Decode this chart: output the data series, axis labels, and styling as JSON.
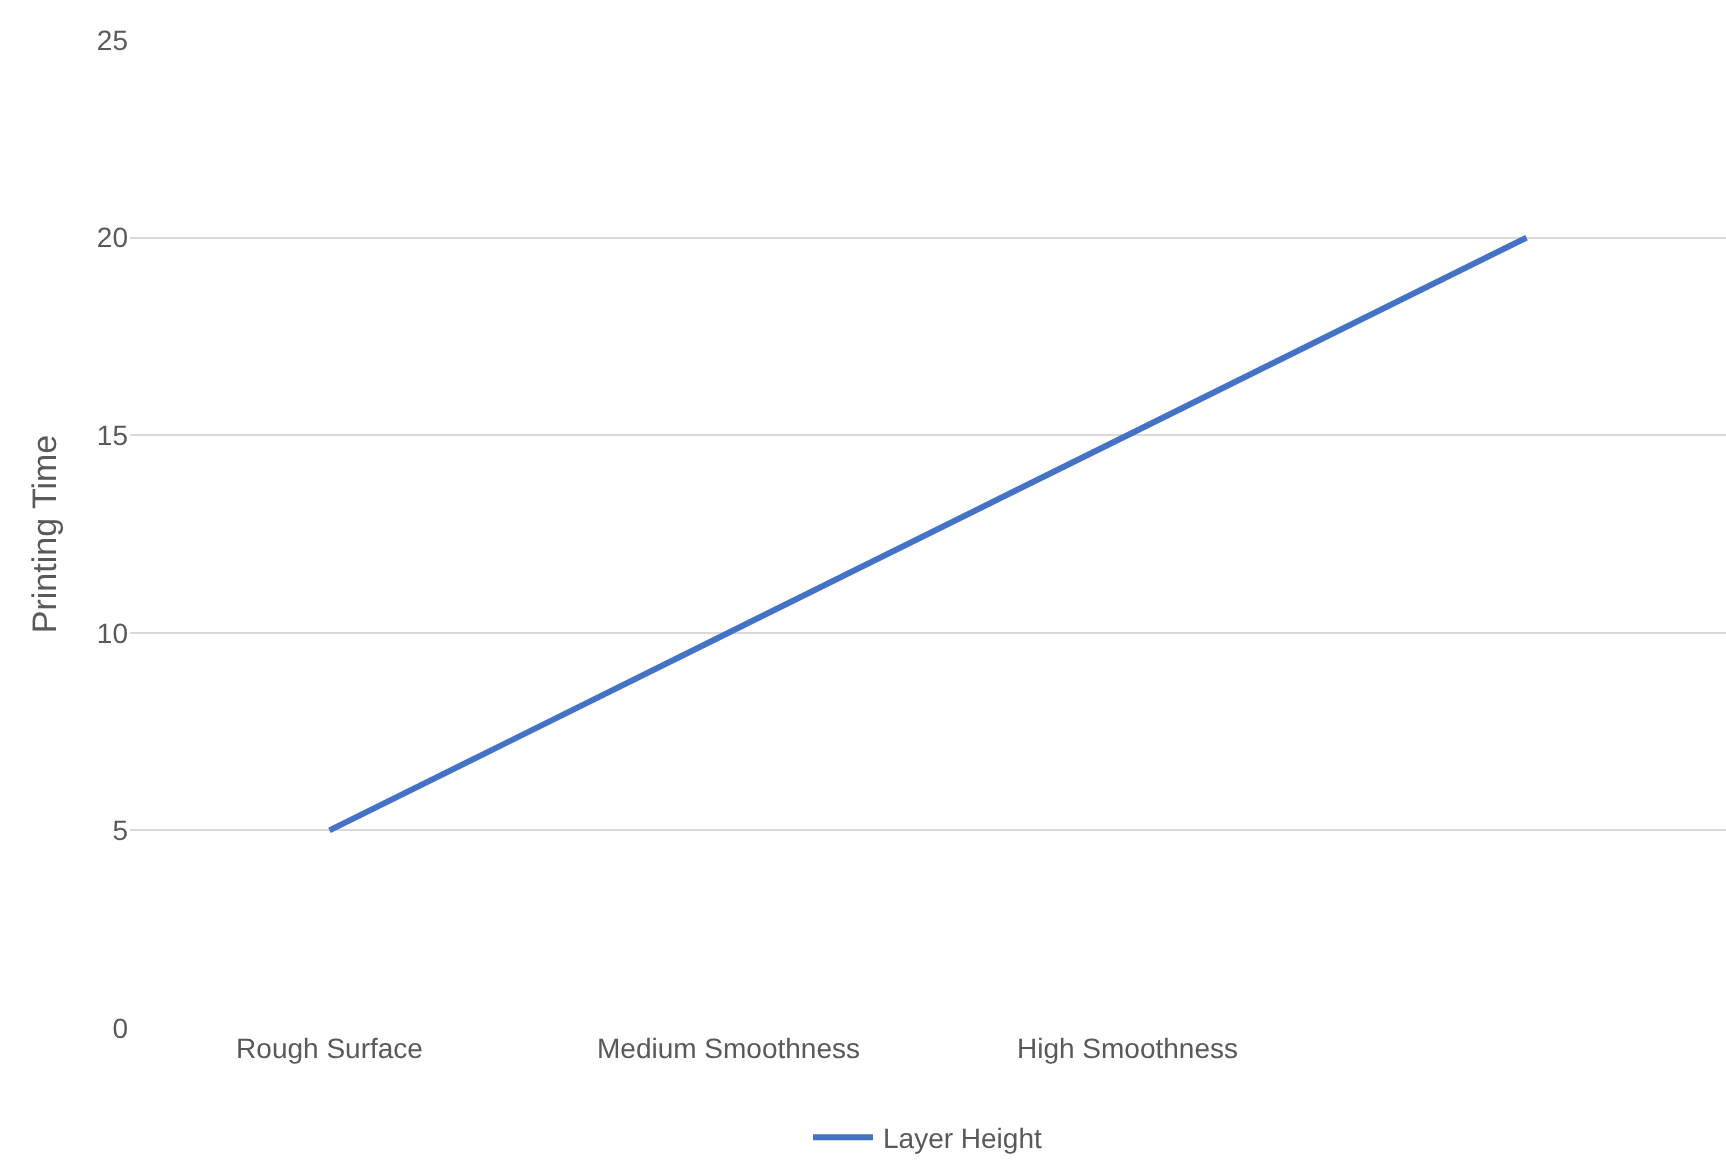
{
  "chart_data": {
    "type": "line",
    "ylabel": "Printing Time",
    "categories": [
      "Rough Surface",
      "Medium Smoothness",
      "High Smoothness",
      null
    ],
    "series": [
      {
        "name": "Layer Height",
        "color": "#4472c4",
        "values": [
          5,
          10,
          15,
          20
        ]
      }
    ],
    "ylim": [
      0,
      25
    ],
    "yticks": [
      0,
      5,
      10,
      15,
      20,
      25
    ],
    "grid": "y",
    "legend": "bottom",
    "marker": "none",
    "line_style": "solid"
  }
}
